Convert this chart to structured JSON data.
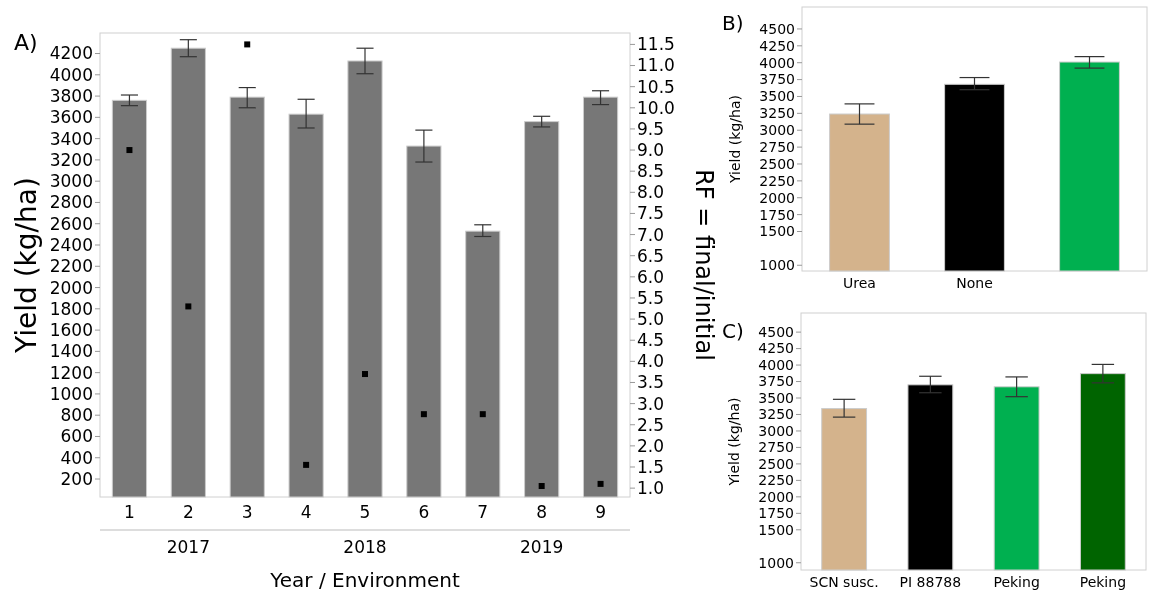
{
  "chart_data": [
    {
      "type": "bar",
      "title": "A)",
      "xlabel": "Year / Environment",
      "ylabel": "Yield (kg/ha)",
      "y2label": "RF = final/initial",
      "categories": [
        "1",
        "2",
        "3",
        "4",
        "5",
        "6",
        "7",
        "8",
        "9"
      ],
      "series": [
        {
          "type": "bar",
          "color": "#777777",
          "values": [
            3760,
            4250,
            3790,
            3630,
            4130,
            3330,
            2530,
            3560,
            3790
          ],
          "errors": [
            [
              3710,
              3810
            ],
            [
              4170,
              4330
            ],
            [
              3690,
              3880
            ],
            [
              3500,
              3770
            ],
            [
              4010,
              4250
            ],
            [
              3180,
              3480
            ],
            [
              2480,
              2590
            ],
            [
              3510,
              3610
            ],
            [
              3720,
              3850
            ]
          ]
        },
        {
          "type": "scatter",
          "axis": "y2",
          "color": "#000000",
          "marker": "square",
          "values": [
            9.0,
            5.3,
            11.5,
            1.55,
            3.7,
            2.75,
            2.75,
            1.05,
            1.1
          ]
        }
      ],
      "ylim": [
        31,
        4393
      ],
      "yticks": [
        200,
        400,
        600,
        800,
        1000,
        1200,
        1400,
        1600,
        1800,
        2000,
        2200,
        2400,
        2600,
        2800,
        3000,
        3200,
        3400,
        3600,
        3800,
        4000,
        4200
      ],
      "y2lim": [
        0.79,
        11.77
      ],
      "y2ticks": [
        {
          "value": 1,
          "label": "1.0"
        },
        1.5,
        {
          "value": 2,
          "label": "2.0"
        },
        2.5,
        {
          "value": 3,
          "label": "3.0"
        },
        3.5,
        {
          "value": 4,
          "label": "4.0"
        },
        4.5,
        {
          "value": 5,
          "label": "5.0"
        },
        5.5,
        {
          "value": 6,
          "label": "6.0"
        },
        6.5,
        {
          "value": 7,
          "label": "7.0"
        },
        7.5,
        {
          "value": 8,
          "label": "8.0"
        },
        8.5,
        {
          "value": 9,
          "label": "9.0"
        },
        9.5,
        {
          "value": 10,
          "label": "10.0"
        },
        10.5,
        {
          "value": 11,
          "label": "11.0"
        },
        11.5
      ],
      "annotations": [
        "2017",
        "2018",
        "2019"
      ]
    },
    {
      "type": "bar",
      "title": "B)",
      "ylabel": "Yield (kg/ha)",
      "categories": [
        "Urea",
        "None",
        null
      ],
      "values": [
        3240,
        3680,
        4010
      ],
      "colors": [
        "#d4b38c",
        "#000000",
        "#00b050"
      ],
      "errors": [
        [
          3090,
          3390
        ],
        [
          3600,
          3780
        ],
        [
          3920,
          4090
        ]
      ],
      "ylim": [
        915,
        4825
      ],
      "yticks": [
        1000,
        1500,
        1750,
        2000,
        2250,
        2500,
        2750,
        3000,
        3250,
        3500,
        3750,
        4000,
        4250,
        4500
      ]
    },
    {
      "type": "bar",
      "title": "C)",
      "ylabel": "Yield (kg/ha)",
      "categories": [
        "SCN susc.",
        "PI 88788",
        "Peking",
        "Peking"
      ],
      "values": [
        3340,
        3700,
        3670,
        3870
      ],
      "colors": [
        "#d4b38c",
        "#000000",
        "#00b050",
        "#006400"
      ],
      "errors": [
        [
          3210,
          3480
        ],
        [
          3580,
          3830
        ],
        [
          3520,
          3820
        ],
        [
          3730,
          4010
        ]
      ],
      "ylim": [
        890,
        4790
      ],
      "yticks": [
        1000,
        1500,
        1750,
        2000,
        2250,
        2500,
        2750,
        3000,
        3250,
        3500,
        3750,
        4000,
        4250,
        4500
      ]
    }
  ]
}
